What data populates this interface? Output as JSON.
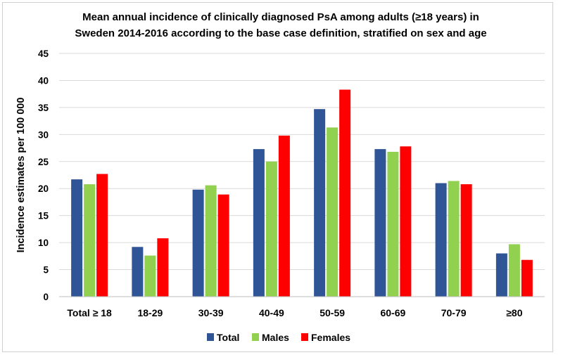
{
  "chart_data": {
    "type": "bar",
    "title_lines": [
      "Mean annual  incidence of clinically diagnosed PsA among adults (≥18 years) in",
      "Sweden 2014-2016 according to the base case definition, stratified on sex and age"
    ],
    "xlabel": "",
    "ylabel": "Incidence estimates per 100 000",
    "ylim": [
      0,
      45
    ],
    "yticks": [
      0,
      5,
      10,
      15,
      20,
      25,
      30,
      35,
      40,
      45
    ],
    "grid": true,
    "legend_position": "bottom",
    "categories": [
      "Total ≥ 18",
      "18-29",
      "30-39",
      "40-49",
      "50-59",
      "60-69",
      "70-79",
      "≥80"
    ],
    "series": [
      {
        "name": "Total",
        "color": "#2F5597",
        "values": [
          21.7,
          9.2,
          19.8,
          27.3,
          34.7,
          27.3,
          21.0,
          8.0
        ]
      },
      {
        "name": "Males",
        "color": "#92D050",
        "values": [
          20.8,
          7.6,
          20.6,
          25.0,
          31.3,
          26.8,
          21.4,
          9.7
        ]
      },
      {
        "name": "Females",
        "color": "#FF0000",
        "values": [
          22.7,
          10.8,
          18.9,
          29.8,
          38.3,
          27.8,
          20.8,
          6.8
        ]
      }
    ]
  }
}
